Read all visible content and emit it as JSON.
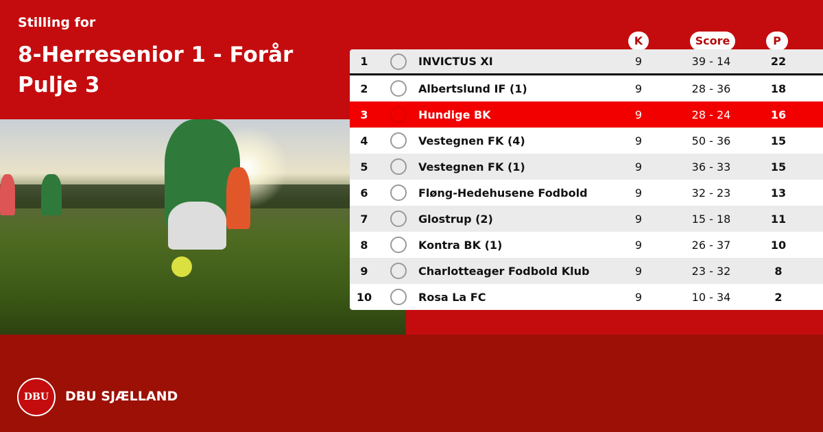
{
  "header": {
    "subtitle": "Stilling for",
    "title_line1": "8-Herresenior 1 - Forår",
    "title_line2": "Pulje 3"
  },
  "columns": {
    "k": "K",
    "score": "Score",
    "p": "P"
  },
  "colors": {
    "background": "#c40c0e",
    "footer": "#9c1006",
    "highlight": "#f20000"
  },
  "rows": [
    {
      "rank": "1",
      "team": "INVICTUS XI",
      "k": "9",
      "score": "39 - 14",
      "p": "22"
    },
    {
      "rank": "2",
      "team": "Albertslund IF (1)",
      "k": "9",
      "score": "28 - 36",
      "p": "18"
    },
    {
      "rank": "3",
      "team": "Hundige BK",
      "k": "9",
      "score": "28 - 24",
      "p": "16",
      "highlighted": true
    },
    {
      "rank": "4",
      "team": "Vestegnen FK (4)",
      "k": "9",
      "score": "50 - 36",
      "p": "15"
    },
    {
      "rank": "5",
      "team": "Vestegnen FK (1)",
      "k": "9",
      "score": "36 - 33",
      "p": "15"
    },
    {
      "rank": "6",
      "team": "Fløng-Hedehusene Fodbold",
      "k": "9",
      "score": "32 - 23",
      "p": "13"
    },
    {
      "rank": "7",
      "team": "Glostrup (2)",
      "k": "9",
      "score": "15 - 18",
      "p": "11"
    },
    {
      "rank": "8",
      "team": "Kontra BK (1)",
      "k": "9",
      "score": "26 - 37",
      "p": "10"
    },
    {
      "rank": "9",
      "team": "Charlotteager Fodbold Klub",
      "k": "9",
      "score": "23 - 32",
      "p": "8"
    },
    {
      "rank": "10",
      "team": "Rosa La FC",
      "k": "9",
      "score": "10 - 34",
      "p": "2"
    }
  ],
  "footer": {
    "logo_text": "DBU",
    "name": "DBU SJÆLLAND"
  }
}
